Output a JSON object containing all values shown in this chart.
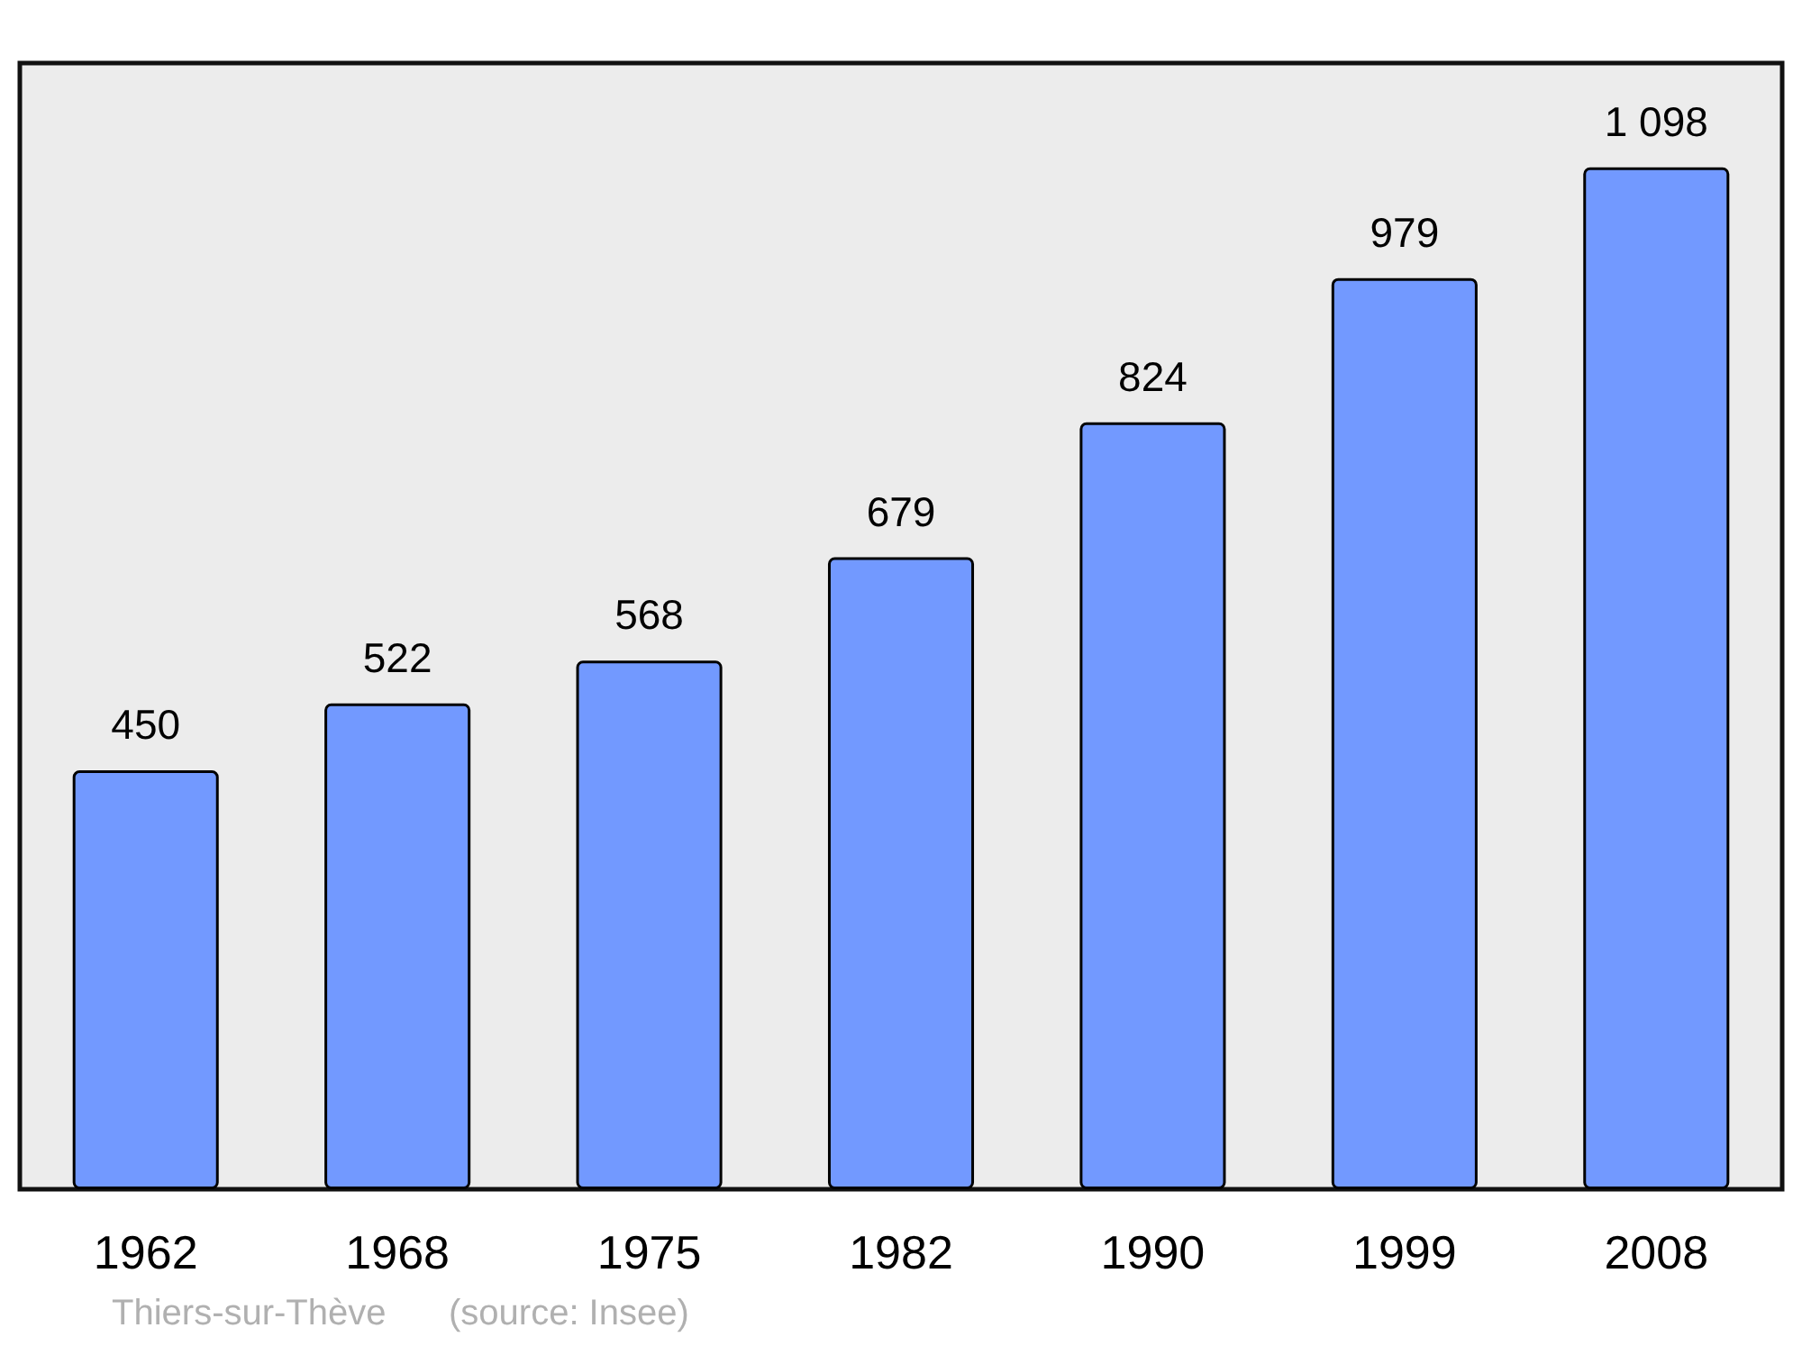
{
  "chart_data": {
    "type": "bar",
    "categories": [
      "1962",
      "1968",
      "1975",
      "1982",
      "1990",
      "1999",
      "2008"
    ],
    "values": [
      450,
      522,
      568,
      679,
      824,
      979,
      1098
    ],
    "value_labels": [
      "450",
      "522",
      "568",
      "679",
      "824",
      "979",
      "1 098"
    ],
    "color": "#7299ff",
    "ylim": [
      0,
      1210
    ],
    "tick_labels": "x",
    "annotations": [
      "Thiers-sur-Thève",
      "(source: Insee)"
    ]
  }
}
